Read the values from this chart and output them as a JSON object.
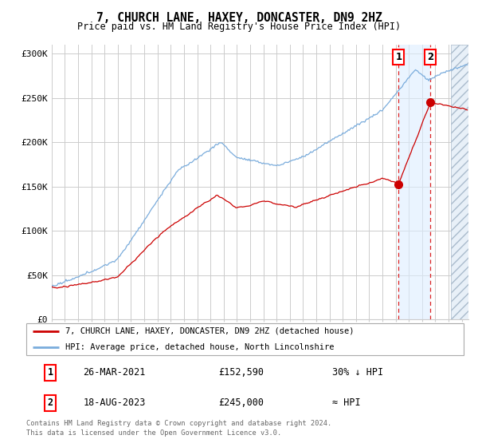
{
  "title": "7, CHURCH LANE, HAXEY, DONCASTER, DN9 2HZ",
  "subtitle": "Price paid vs. HM Land Registry's House Price Index (HPI)",
  "ylabel_ticks": [
    "£0",
    "£50K",
    "£100K",
    "£150K",
    "£200K",
    "£250K",
    "£300K"
  ],
  "ytick_vals": [
    0,
    50000,
    100000,
    150000,
    200000,
    250000,
    300000
  ],
  "ylim": [
    0,
    310000
  ],
  "xlim_start": 1995.0,
  "xlim_end": 2026.5,
  "hpi_color": "#7aacdc",
  "price_color": "#cc0000",
  "bg_color": "#ffffff",
  "grid_color": "#cccccc",
  "sale1_x": 2021.23,
  "sale1_y": 152590,
  "sale2_x": 2023.63,
  "sale2_y": 245000,
  "sale1_label": "26-MAR-2021",
  "sale1_price": "£152,590",
  "sale1_hpi": "30% ↓ HPI",
  "sale2_label": "18-AUG-2023",
  "sale2_price": "£245,000",
  "sale2_hpi": "≈ HPI",
  "legend_line1": "7, CHURCH LANE, HAXEY, DONCASTER, DN9 2HZ (detached house)",
  "legend_line2": "HPI: Average price, detached house, North Lincolnshire",
  "footnote1": "Contains HM Land Registry data © Crown copyright and database right 2024.",
  "footnote2": "This data is licensed under the Open Government Licence v3.0.",
  "future_start": 2025.17,
  "shade_color": "#ddeeff",
  "future_color": "#e8f0f8"
}
